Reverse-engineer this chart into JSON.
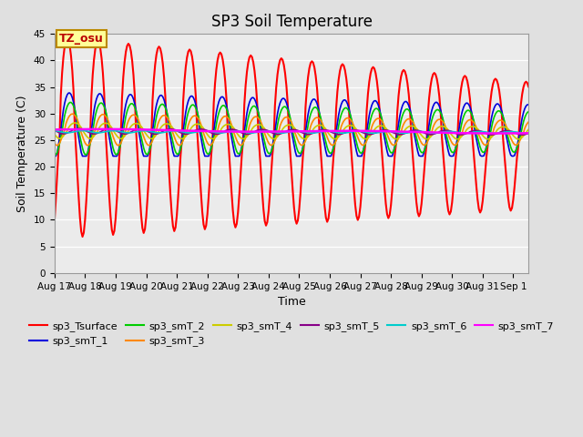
{
  "title": "SP3 Soil Temperature",
  "xlabel": "Time",
  "ylabel": "Soil Temperature (C)",
  "ylim": [
    0,
    45
  ],
  "x_tick_labels": [
    "Aug 17",
    "Aug 18",
    "Aug 19",
    "Aug 20",
    "Aug 21",
    "Aug 22",
    "Aug 23",
    "Aug 24",
    "Aug 25",
    "Aug 26",
    "Aug 27",
    "Aug 28",
    "Aug 29",
    "Aug 30",
    "Aug 31",
    "Sep 1"
  ],
  "annotation_text": "TZ_osu",
  "annotation_bg": "#FFFF99",
  "annotation_border": "#BB8800",
  "annotation_text_color": "#BB0000",
  "series_names": [
    "sp3_Tsurface",
    "sp3_smT_1",
    "sp3_smT_2",
    "sp3_smT_3",
    "sp3_smT_4",
    "sp3_smT_5",
    "sp3_smT_6",
    "sp3_smT_7"
  ],
  "series_colors": [
    "#FF0000",
    "#0000DD",
    "#00CC00",
    "#FF8800",
    "#CCCC00",
    "#880088",
    "#00CCCC",
    "#FF00FF"
  ],
  "series_lw": [
    1.5,
    1.2,
    1.2,
    1.2,
    1.2,
    1.2,
    1.2,
    1.8
  ],
  "bg_color": "#E0E0E0",
  "plot_bg": "#EBEBEB",
  "grid_color": "#FFFFFF",
  "title_fontsize": 12,
  "label_fontsize": 9,
  "tick_fontsize": 7.5,
  "legend_fontsize": 8
}
